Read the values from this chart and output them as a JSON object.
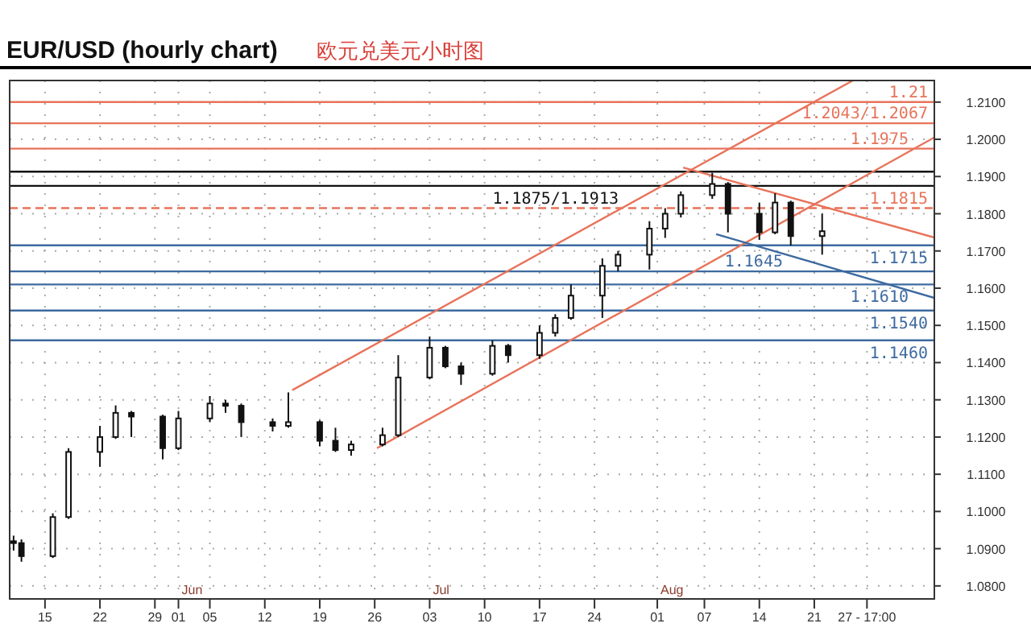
{
  "chart_data": {
    "type": "candlestick",
    "title": "EUR/USD (hourly chart)",
    "subtitle": "欧元兑美元小时图",
    "color": "#111111",
    "x": [
      "--05-11",
      "--05-12",
      "--05-16",
      "--05-18",
      "--05-22",
      "--05-24",
      "--05-26",
      "--05-30",
      "--06-01",
      "--06-05",
      "--06-07",
      "--06-09",
      "--06-13",
      "--06-15",
      "--06-19",
      "--06-21",
      "--06-23",
      "--06-27",
      "--06-29",
      "--07-03",
      "--07-05",
      "--07-07",
      "--07-11",
      "--07-13",
      "--07-17",
      "--07-19",
      "--07-21",
      "--07-25",
      "--07-27",
      "--07-31",
      "--08-02",
      "--08-04",
      "--08-08",
      "--08-10",
      "--08-14",
      "--08-16",
      "--08-18",
      "--08-22"
    ],
    "ohlc": [
      [
        1.092,
        1.0935,
        1.0895,
        1.0915
      ],
      [
        1.0915,
        1.0925,
        1.0865,
        1.088
      ],
      [
        1.088,
        1.0995,
        1.0875,
        1.0985
      ],
      [
        1.0985,
        1.117,
        1.098,
        1.116
      ],
      [
        1.116,
        1.123,
        1.112,
        1.12
      ],
      [
        1.12,
        1.1285,
        1.1195,
        1.1265
      ],
      [
        1.1265,
        1.127,
        1.12,
        1.1255
      ],
      [
        1.1255,
        1.126,
        1.114,
        1.117
      ],
      [
        1.117,
        1.127,
        1.1165,
        1.125
      ],
      [
        1.125,
        1.131,
        1.124,
        1.129
      ],
      [
        1.129,
        1.13,
        1.1265,
        1.1284
      ],
      [
        1.1284,
        1.129,
        1.12,
        1.124
      ],
      [
        1.124,
        1.125,
        1.1215,
        1.123
      ],
      [
        1.123,
        1.132,
        1.1225,
        1.124
      ],
      [
        1.124,
        1.1245,
        1.1175,
        1.119
      ],
      [
        1.119,
        1.1225,
        1.116,
        1.1165
      ],
      [
        1.1165,
        1.119,
        1.115,
        1.118
      ],
      [
        1.118,
        1.1225,
        1.1175,
        1.1205
      ],
      [
        1.1205,
        1.142,
        1.12,
        1.136
      ],
      [
        1.136,
        1.147,
        1.1355,
        1.144
      ],
      [
        1.144,
        1.1445,
        1.1385,
        1.139
      ],
      [
        1.139,
        1.14,
        1.134,
        1.137
      ],
      [
        1.137,
        1.146,
        1.1365,
        1.1445
      ],
      [
        1.1445,
        1.145,
        1.14,
        1.142
      ],
      [
        1.142,
        1.15,
        1.141,
        1.148
      ],
      [
        1.148,
        1.153,
        1.147,
        1.152
      ],
      [
        1.152,
        1.161,
        1.1515,
        1.158
      ],
      [
        1.158,
        1.168,
        1.152,
        1.166
      ],
      [
        1.166,
        1.17,
        1.1645,
        1.169
      ],
      [
        1.169,
        1.178,
        1.165,
        1.176
      ],
      [
        1.176,
        1.1815,
        1.1735,
        1.18
      ],
      [
        1.18,
        1.186,
        1.179,
        1.185
      ],
      [
        1.185,
        1.191,
        1.184,
        1.188
      ],
      [
        1.188,
        1.1885,
        1.175,
        1.18
      ],
      [
        1.18,
        1.183,
        1.173,
        1.175
      ],
      [
        1.175,
        1.1855,
        1.1745,
        1.183
      ],
      [
        1.183,
        1.1835,
        1.1715,
        1.174
      ],
      [
        1.174,
        1.18,
        1.169,
        1.1753
      ]
    ],
    "series": [
      {
        "type": "line",
        "color": "#e8735a",
        "x": [
          "--06-15T12:00",
          "--08-25T22:00"
        ],
        "values": [
          1.1326,
          1.2158
        ]
      },
      {
        "type": "line",
        "color": "#e8735a",
        "x": [
          "--06-26T07:00",
          "--09-05T07:00"
        ],
        "values": [
          1.117,
          1.2005
        ]
      },
      {
        "type": "line",
        "color": "#e8735a",
        "x": [
          "--08-04T07:00",
          "--09-05T07:00"
        ],
        "values": [
          1.1924,
          1.1736
        ]
      },
      {
        "type": "line",
        "color": "#3d6aa0",
        "x": [
          "--08-08T12:00",
          "--09-05T07:00"
        ],
        "values": [
          1.1745,
          1.1574
        ]
      }
    ],
    "ref_lines": [
      {
        "axis": "y",
        "value": 1.21,
        "label": "1.21",
        "color": "#e8735a"
      },
      {
        "axis": "y",
        "value": 1.2043,
        "label": "1.2043/1.2067",
        "color": "#e8735a"
      },
      {
        "axis": "y",
        "value": 1.1975,
        "label": "1.1975",
        "color": "#e8735a"
      },
      {
        "axis": "y",
        "value": 1.1913,
        "label": null,
        "color": "#111111"
      },
      {
        "axis": "y",
        "value": 1.1875,
        "label": "1.1875/1.1913",
        "color": "#111111"
      },
      {
        "axis": "y",
        "value": 1.1815,
        "label": "1.1815",
        "color": "#e8735a",
        "line_style": "dashed"
      },
      {
        "axis": "y",
        "value": 1.1715,
        "label": "1.1715",
        "color": "#3d6aa0"
      },
      {
        "axis": "y",
        "value": 1.1645,
        "label": "1.1645",
        "color": "#3d6aa0"
      },
      {
        "axis": "y",
        "value": 1.161,
        "label": "1.1610",
        "color": "#3d6aa0"
      },
      {
        "axis": "y",
        "value": 1.154,
        "label": "1.1540",
        "color": "#3d6aa0"
      },
      {
        "axis": "y",
        "value": 1.146,
        "label": "1.1460",
        "color": "#3d6aa0"
      }
    ],
    "annotations": [
      "Jun",
      "Jul",
      "Aug"
    ],
    "xlim": [
      "--05-10T12:00",
      "--09-05T07:00"
    ],
    "ylim": [
      1.0765,
      1.2158
    ],
    "xticks": [
      {
        "value": "--05-15",
        "label": "15"
      },
      {
        "value": "--05-22",
        "label": "22"
      },
      {
        "value": "--05-29",
        "label": "29"
      },
      {
        "value": "--06-01",
        "label": "01"
      },
      {
        "value": "--06-05",
        "label": "05"
      },
      {
        "value": "--06-12",
        "label": "12"
      },
      {
        "value": "--06-19",
        "label": "19"
      },
      {
        "value": "--06-26",
        "label": "26"
      },
      {
        "value": "--07-03",
        "label": "03"
      },
      {
        "value": "--07-10",
        "label": "10"
      },
      {
        "value": "--07-17",
        "label": "17"
      },
      {
        "value": "--07-24",
        "label": "24"
      },
      {
        "value": "--08-01",
        "label": "01"
      },
      {
        "value": "--08-07",
        "label": "07"
      },
      {
        "value": "--08-14",
        "label": "14"
      },
      {
        "value": "--08-21",
        "label": "21"
      },
      {
        "value": "--08-27T17:00",
        "label": "27 - 17:00"
      }
    ],
    "yticks": [
      {
        "value": 1.08,
        "label": "1.0800"
      },
      {
        "value": 1.09,
        "label": "1.0900"
      },
      {
        "value": 1.1,
        "label": "1.1000"
      },
      {
        "value": 1.11,
        "label": "1.1100"
      },
      {
        "value": 1.12,
        "label": "1.1200"
      },
      {
        "value": 1.13,
        "label": "1.1300"
      },
      {
        "value": 1.14,
        "label": "1.1400"
      },
      {
        "value": 1.15,
        "label": "1.1500"
      },
      {
        "value": 1.16,
        "label": "1.1600"
      },
      {
        "value": 1.17,
        "label": "1.1700"
      },
      {
        "value": 1.18,
        "label": "1.1800"
      },
      {
        "value": 1.19,
        "label": "1.1900"
      },
      {
        "value": 1.2,
        "label": "1.2000"
      },
      {
        "value": 1.21,
        "label": "1.2100"
      }
    ],
    "grid": true
  }
}
